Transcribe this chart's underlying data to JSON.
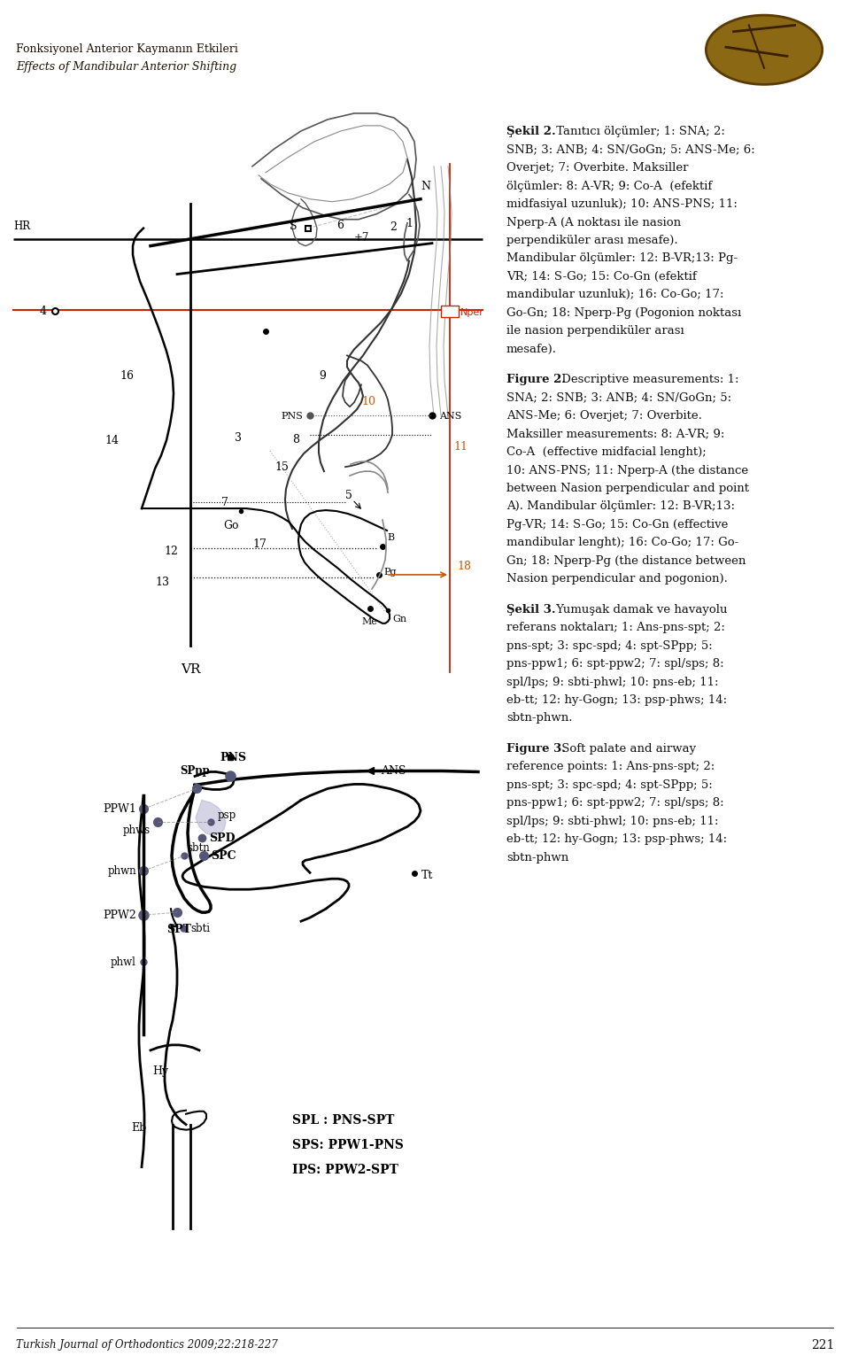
{
  "page_bg": "#ffffff",
  "header_bg": "#bfb49a",
  "header_text1": "Fonksiyonel Anterior Kaymanın Etkileri",
  "header_text2": "Effects of Mandibular Anterior Shifting",
  "header_text_color": "#1a1000",
  "sekil2_bold": "Şekil 2.",
  "sekil2_text": " Tanıtıcı ölçümler; 1: SNA; 2: SNB; 3: ANB; 4: SN/GoGn; 5: ANS-Me; 6: Overjet; 7: Overbite. Maksiller ölçümler: 8: A-VR; 9: Co-A  (efektif midfasiyal uzunluk); 10: ANS-PNS; 11: Nperp-A (A noktası ile nasion perpendiküler arası mesafe). Mandibular ölçümler: 12: B-VR;13: Pg-VR; 14: S-Go; 15: Co-Gn (efektif mandibular uzunluk); 16: Co-Go; 17: Go-Gn; 18: Nperp-Pg (Pogonion noktası ile nasion perpendiküler arası mesafe).",
  "figure2_bold": "Figure 2.",
  "figure2_text": " Descriptive measurements: 1: SNA; 2: SNB; 3: ANB; 4: SN/GoGn; 5: ANS-Me; 6: Overjet; 7: Overbite. Maksiller measurements: 8: A-VR; 9: Co-A  (effective midfacial lenght); 10: ANS-PNS; 11: Nperp-A (the distance between Nasion perpendicular and point A). Mandibular ölçümler: 12: B-VR;13: Pg-VR; 14: S-Go; 15: Co-Gn (effective mandibular lenght); 16: Co-Go; 17: Go-Gn; 18: Nperp-Pg (the distance between Nasion perpendicular and pogonion).",
  "sekil3_bold": "Şekil 3.",
  "sekil3_text": " Yumuşak damak ve havayolu referans noktaları; 1: Ans-pns-spt; 2: pns-spt; 3: spc-spd; 4: spt-SPpp; 5: pns-ppw1; 6: spt-ppw2; 7: spl/sps; 8: spl/lps; 9: sbti-phwl; 10: pns-eb; 11: eb-tt; 12: hy-Gogn; 13: psp-phws; 14: sbtn-phwn.",
  "figure3_bold": "Figure 3.",
  "figure3_text": " Soft palate and airway reference points: 1: Ans-pns-spt; 2: pns-spt; 3: spc-spd; 4: spt-SPpp; 5: pns-ppw1; 6: spt-ppw2; 7: spl/sps; 8: spl/lps; 9: sbti-phwl; 10: pns-eb; 11: eb-tt; 12: hy-Gogn; 13: psp-phws; 14: sbtn-phwn",
  "footer_text": "Turkish Journal of Orthodontics 2009;22:218-227",
  "footer_page": "221",
  "text_color": "#111111"
}
